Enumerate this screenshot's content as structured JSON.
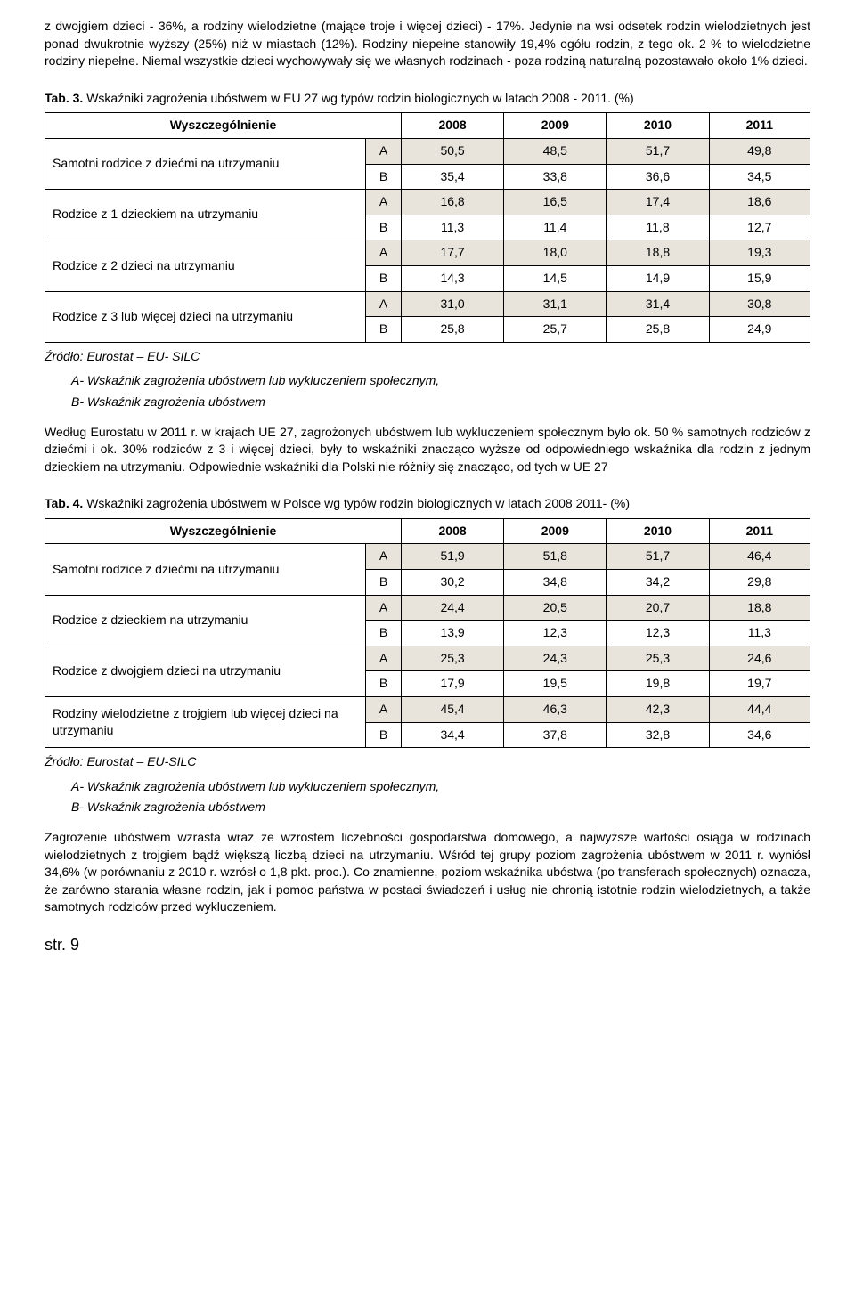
{
  "intro": "z dwojgiem dzieci - 36%, a rodziny wielodzietne (mające troje i więcej dzieci) - 17%. Jedynie na wsi odsetek rodzin wielodzietnych jest ponad dwukrotnie wyższy (25%) niż w miastach (12%). Rodziny niepełne stanowiły 19,4% ogółu rodzin, z tego ok. 2 % to wielodzietne rodziny niepełne. Niemal wszystkie dzieci wychowywały się we własnych rodzinach - poza rodziną naturalną pozostawało około 1% dzieci.",
  "tab3": {
    "caption_bold": "Tab. 3.",
    "caption_rest": " Wskaźniki zagrożenia ubóstwem w EU 27 wg typów rodzin biologicznych w latach 2008 - 2011. (%)",
    "header": [
      "Wyszczególnienie",
      "2008",
      "2009",
      "2010",
      "2011"
    ],
    "rows": [
      {
        "label": "Samotni rodzice z dziećmi na utrzymaniu",
        "a": [
          "50,5",
          "48,5",
          "51,7",
          "49,8"
        ],
        "b": [
          "35,4",
          "33,8",
          "36,6",
          "34,5"
        ]
      },
      {
        "label": "Rodzice z 1 dzieckiem na utrzymaniu",
        "a": [
          "16,8",
          "16,5",
          "17,4",
          "18,6"
        ],
        "b": [
          "11,3",
          "11,4",
          "11,8",
          "12,7"
        ]
      },
      {
        "label": "Rodzice z 2 dzieci na utrzymaniu",
        "a": [
          "17,7",
          "18,0",
          "18,8",
          "19,3"
        ],
        "b": [
          "14,3",
          "14,5",
          "14,9",
          "15,9"
        ]
      },
      {
        "label": "Rodzice z 3 lub więcej dzieci na utrzymaniu",
        "a": [
          "31,0",
          "31,1",
          "31,4",
          "30,8"
        ],
        "b": [
          "25,8",
          "25,7",
          "25,8",
          "24,9"
        ]
      }
    ],
    "source": "Źródło: Eurostat – EU- SILC",
    "legend_a": "A-   Wskaźnik zagrożenia ubóstwem lub wykluczeniem społecznym,",
    "legend_b": "B-   Wskaźnik zagrożenia ubóstwem"
  },
  "mid_para": "Według Eurostatu w 2011 r. w krajach UE 27, zagrożonych ubóstwem lub wykluczeniem społecznym było ok. 50 % samotnych rodziców z dziećmi i ok. 30% rodziców z 3 i więcej dzieci, były to wskaźniki znacząco wyższe od odpowiedniego wskaźnika dla rodzin z jednym dzieckiem na utrzymaniu. Odpowiednie wskaźniki dla Polski nie różniły się znacząco, od tych w UE 27",
  "tab4": {
    "caption_bold": "Tab. 4.",
    "caption_rest": " Wskaźniki zagrożenia ubóstwem w Polsce wg typów rodzin biologicznych w latach 2008 2011- (%)",
    "header": [
      "Wyszczególnienie",
      "2008",
      "2009",
      "2010",
      "2011"
    ],
    "rows": [
      {
        "label": "Samotni rodzice z dziećmi na utrzymaniu",
        "a": [
          "51,9",
          "51,8",
          "51,7",
          "46,4"
        ],
        "b": [
          "30,2",
          "34,8",
          "34,2",
          "29,8"
        ]
      },
      {
        "label": "Rodzice z dzieckiem na utrzymaniu",
        "a": [
          "24,4",
          "20,5",
          "20,7",
          "18,8"
        ],
        "b": [
          "13,9",
          "12,3",
          "12,3",
          "11,3"
        ]
      },
      {
        "label": "Rodzice z dwojgiem dzieci na utrzymaniu",
        "a": [
          "25,3",
          "24,3",
          "25,3",
          "24,6"
        ],
        "b": [
          "17,9",
          "19,5",
          "19,8",
          "19,7"
        ]
      },
      {
        "label": "Rodziny wielodzietne z trojgiem lub więcej dzieci na utrzymaniu",
        "a": [
          "45,4",
          "46,3",
          "42,3",
          "44,4"
        ],
        "b": [
          "34,4",
          "37,8",
          "32,8",
          "34,6"
        ]
      }
    ],
    "source": "Źródło: Eurostat – EU-SILC",
    "legend_a": "A-   Wskaźnik zagrożenia ubóstwem lub wykluczeniem społecznym,",
    "legend_b": "B-   Wskaźnik zagrożenia ubóstwem"
  },
  "end_para": "Zagrożenie ubóstwem wzrasta wraz ze wzrostem liczebności gospodarstwa domowego, a najwyższe wartości osiąga w rodzinach wielodzietnych z trojgiem bądź większą liczbą dzieci na utrzymaniu. Wśród tej grupy poziom zagrożenia ubóstwem w 2011 r. wyniósł 34,6% (w porównaniu z 2010 r. wzrósł o 1,8 pkt. proc.). Co znamienne, poziom wskaźnika ubóstwa (po transferach społecznych) oznacza, że zarówno starania własne rodzin, jak i pomoc państwa w postaci świadczeń i usług nie chronią istotnie rodzin wielodzietnych, a także samotnych rodziców przed wykluczeniem.",
  "page_num": "str. 9",
  "ab_labels": {
    "a": "A",
    "b": "B"
  }
}
